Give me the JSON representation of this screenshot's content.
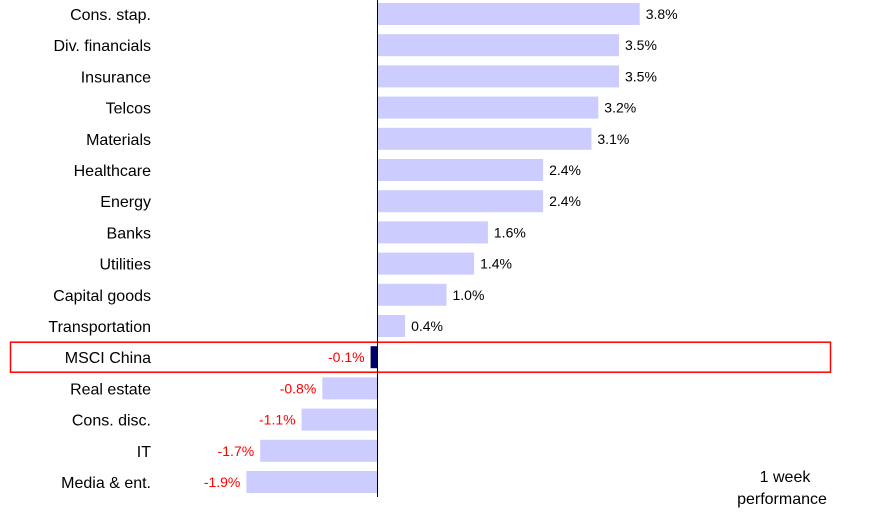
{
  "chart_data": {
    "type": "bar",
    "orientation": "horizontal",
    "categories": [
      "Cons. stap.",
      "Div. financials",
      "Insurance",
      "Telcos",
      "Materials",
      "Healthcare",
      "Energy",
      "Banks",
      "Utilities",
      "Capital goods",
      "Transportation",
      "MSCI China",
      "Real estate",
      "Cons. disc.",
      "IT",
      "Media & ent."
    ],
    "values": [
      3.8,
      3.5,
      3.5,
      3.2,
      3.1,
      2.4,
      2.4,
      1.6,
      1.4,
      1.0,
      0.4,
      -0.1,
      -0.8,
      -1.1,
      -1.7,
      -1.9
    ],
    "value_labels": [
      "3.8%",
      "3.5%",
      "3.5%",
      "3.2%",
      "3.1%",
      "2.4%",
      "2.4%",
      "1.6%",
      "1.4%",
      "1.0%",
      "0.4%",
      "-0.1%",
      "-0.8%",
      "-1.1%",
      "-1.7%",
      "-1.9%"
    ],
    "highlight_category": "MSCI China",
    "caption_lines": [
      "1 week",
      "performance"
    ],
    "xlim": [
      -2.0,
      3.8
    ],
    "grid": false,
    "legend": "none",
    "colors": {
      "bar": "#ccccff",
      "highlight_bar": "#000066",
      "negative_label": "#ff0000",
      "positive_label": "#000000",
      "highlight_box": "#ff0000",
      "axis": "#000000"
    }
  }
}
